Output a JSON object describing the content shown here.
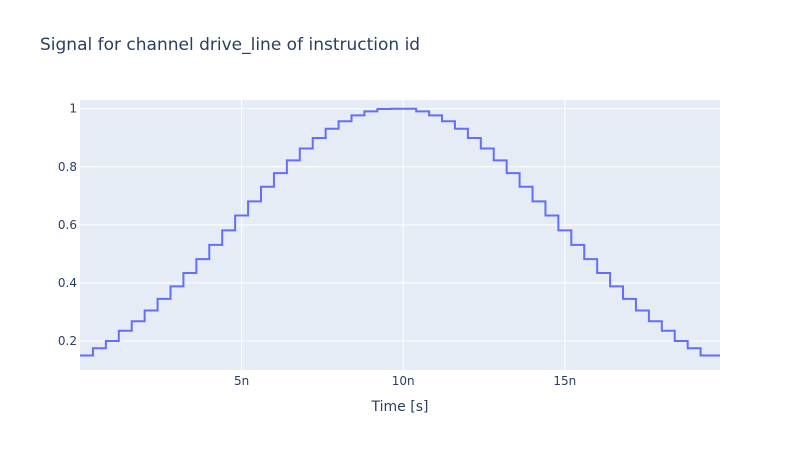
{
  "chart_data": {
    "type": "line",
    "line_shape": "step",
    "title": "Signal for channel drive_line of instruction id",
    "xlabel": "Time [s]",
    "ylabel": "",
    "xlim": [
      0,
      19.8
    ],
    "ylim": [
      0.1,
      1.03
    ],
    "x_ticks": [
      {
        "value": 5,
        "label": "5n"
      },
      {
        "value": 10,
        "label": "10n"
      },
      {
        "value": 15,
        "label": "15n"
      }
    ],
    "y_ticks": [
      {
        "value": 0.2,
        "label": "0.2"
      },
      {
        "value": 0.4,
        "label": "0.4"
      },
      {
        "value": 0.6,
        "label": "0.6"
      },
      {
        "value": 0.8,
        "label": "0.8"
      },
      {
        "value": 1,
        "label": "1"
      }
    ],
    "grid": true,
    "legend": "none",
    "colors": {
      "plot_background": "#e5ecf6",
      "grid": "#ffffff",
      "line": "#636efa",
      "text": "#2a3f5f"
    },
    "series": [
      {
        "x": [
          0,
          0.4,
          0.8,
          1.2,
          1.6,
          2.0,
          2.4,
          2.8,
          3.2,
          3.6,
          4.0,
          4.4,
          4.8,
          5.2,
          5.6,
          6.0,
          6.4,
          6.8,
          7.2,
          7.6,
          8.0,
          8.4,
          8.8,
          9.2,
          9.6,
          10.0,
          10.4,
          10.8,
          11.2,
          11.6,
          12.0,
          12.4,
          12.8,
          13.2,
          13.6,
          14.0,
          14.4,
          14.8,
          15.2,
          15.6,
          16.0,
          16.4,
          16.8,
          17.2,
          17.6,
          18.0,
          18.4,
          18.8,
          19.2,
          19.6
        ],
        "values": [
          0.15,
          0.175,
          0.2,
          0.235,
          0.268,
          0.305,
          0.345,
          0.388,
          0.434,
          0.482,
          0.531,
          0.581,
          0.632,
          0.681,
          0.731,
          0.778,
          0.822,
          0.863,
          0.899,
          0.931,
          0.957,
          0.977,
          0.991,
          0.999,
          1.0,
          1.0,
          0.991,
          0.977,
          0.957,
          0.931,
          0.899,
          0.863,
          0.822,
          0.778,
          0.731,
          0.681,
          0.632,
          0.581,
          0.531,
          0.482,
          0.434,
          0.388,
          0.345,
          0.305,
          0.268,
          0.235,
          0.2,
          0.175,
          0.15,
          0.15
        ]
      }
    ]
  }
}
